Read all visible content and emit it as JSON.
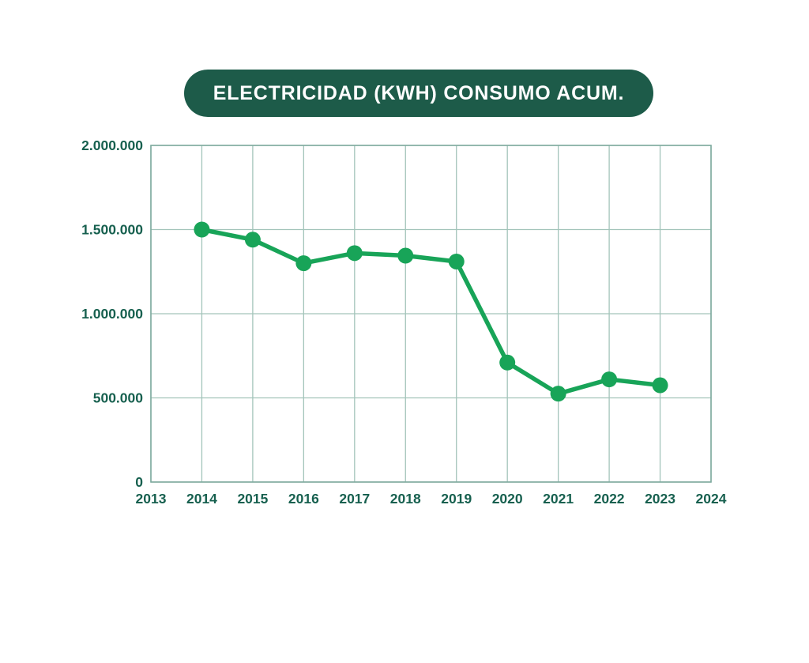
{
  "title_pill": {
    "label": "ELECTRICIDAD (KWH) CONSUMO ACUM.",
    "bg_color": "#1D5B49",
    "text_color": "#FFFFFF"
  },
  "chart_data": {
    "type": "line",
    "title": "ELECTRICIDAD (KWH) CONSUMO ACUM.",
    "x": [
      2014,
      2015,
      2016,
      2017,
      2018,
      2019,
      2020,
      2021,
      2022,
      2023
    ],
    "values": [
      1500000,
      1440000,
      1300000,
      1360000,
      1345000,
      1310000,
      710000,
      525000,
      610000,
      575000
    ],
    "x_ticks": [
      "2013",
      "2014",
      "2015",
      "2016",
      "2017",
      "2018",
      "2019",
      "2020",
      "2021",
      "2022",
      "2023",
      "2024"
    ],
    "y_ticks": [
      {
        "value": 0,
        "label": "0"
      },
      {
        "value": 500000,
        "label": "500.000"
      },
      {
        "value": 1000000,
        "label": "1.000.000"
      },
      {
        "value": 1500000,
        "label": "1.500.000"
      },
      {
        "value": 2000000,
        "label": "2.000.000"
      }
    ],
    "xlim": [
      2013,
      2024
    ],
    "ylim": [
      0,
      2000000
    ],
    "grid": true,
    "legend": "none",
    "colors": {
      "line": "#18A458",
      "marker": "#18A458",
      "grid": "#A3C4BA",
      "border": "#7FAB9F",
      "tick_text": "#17604F"
    }
  }
}
